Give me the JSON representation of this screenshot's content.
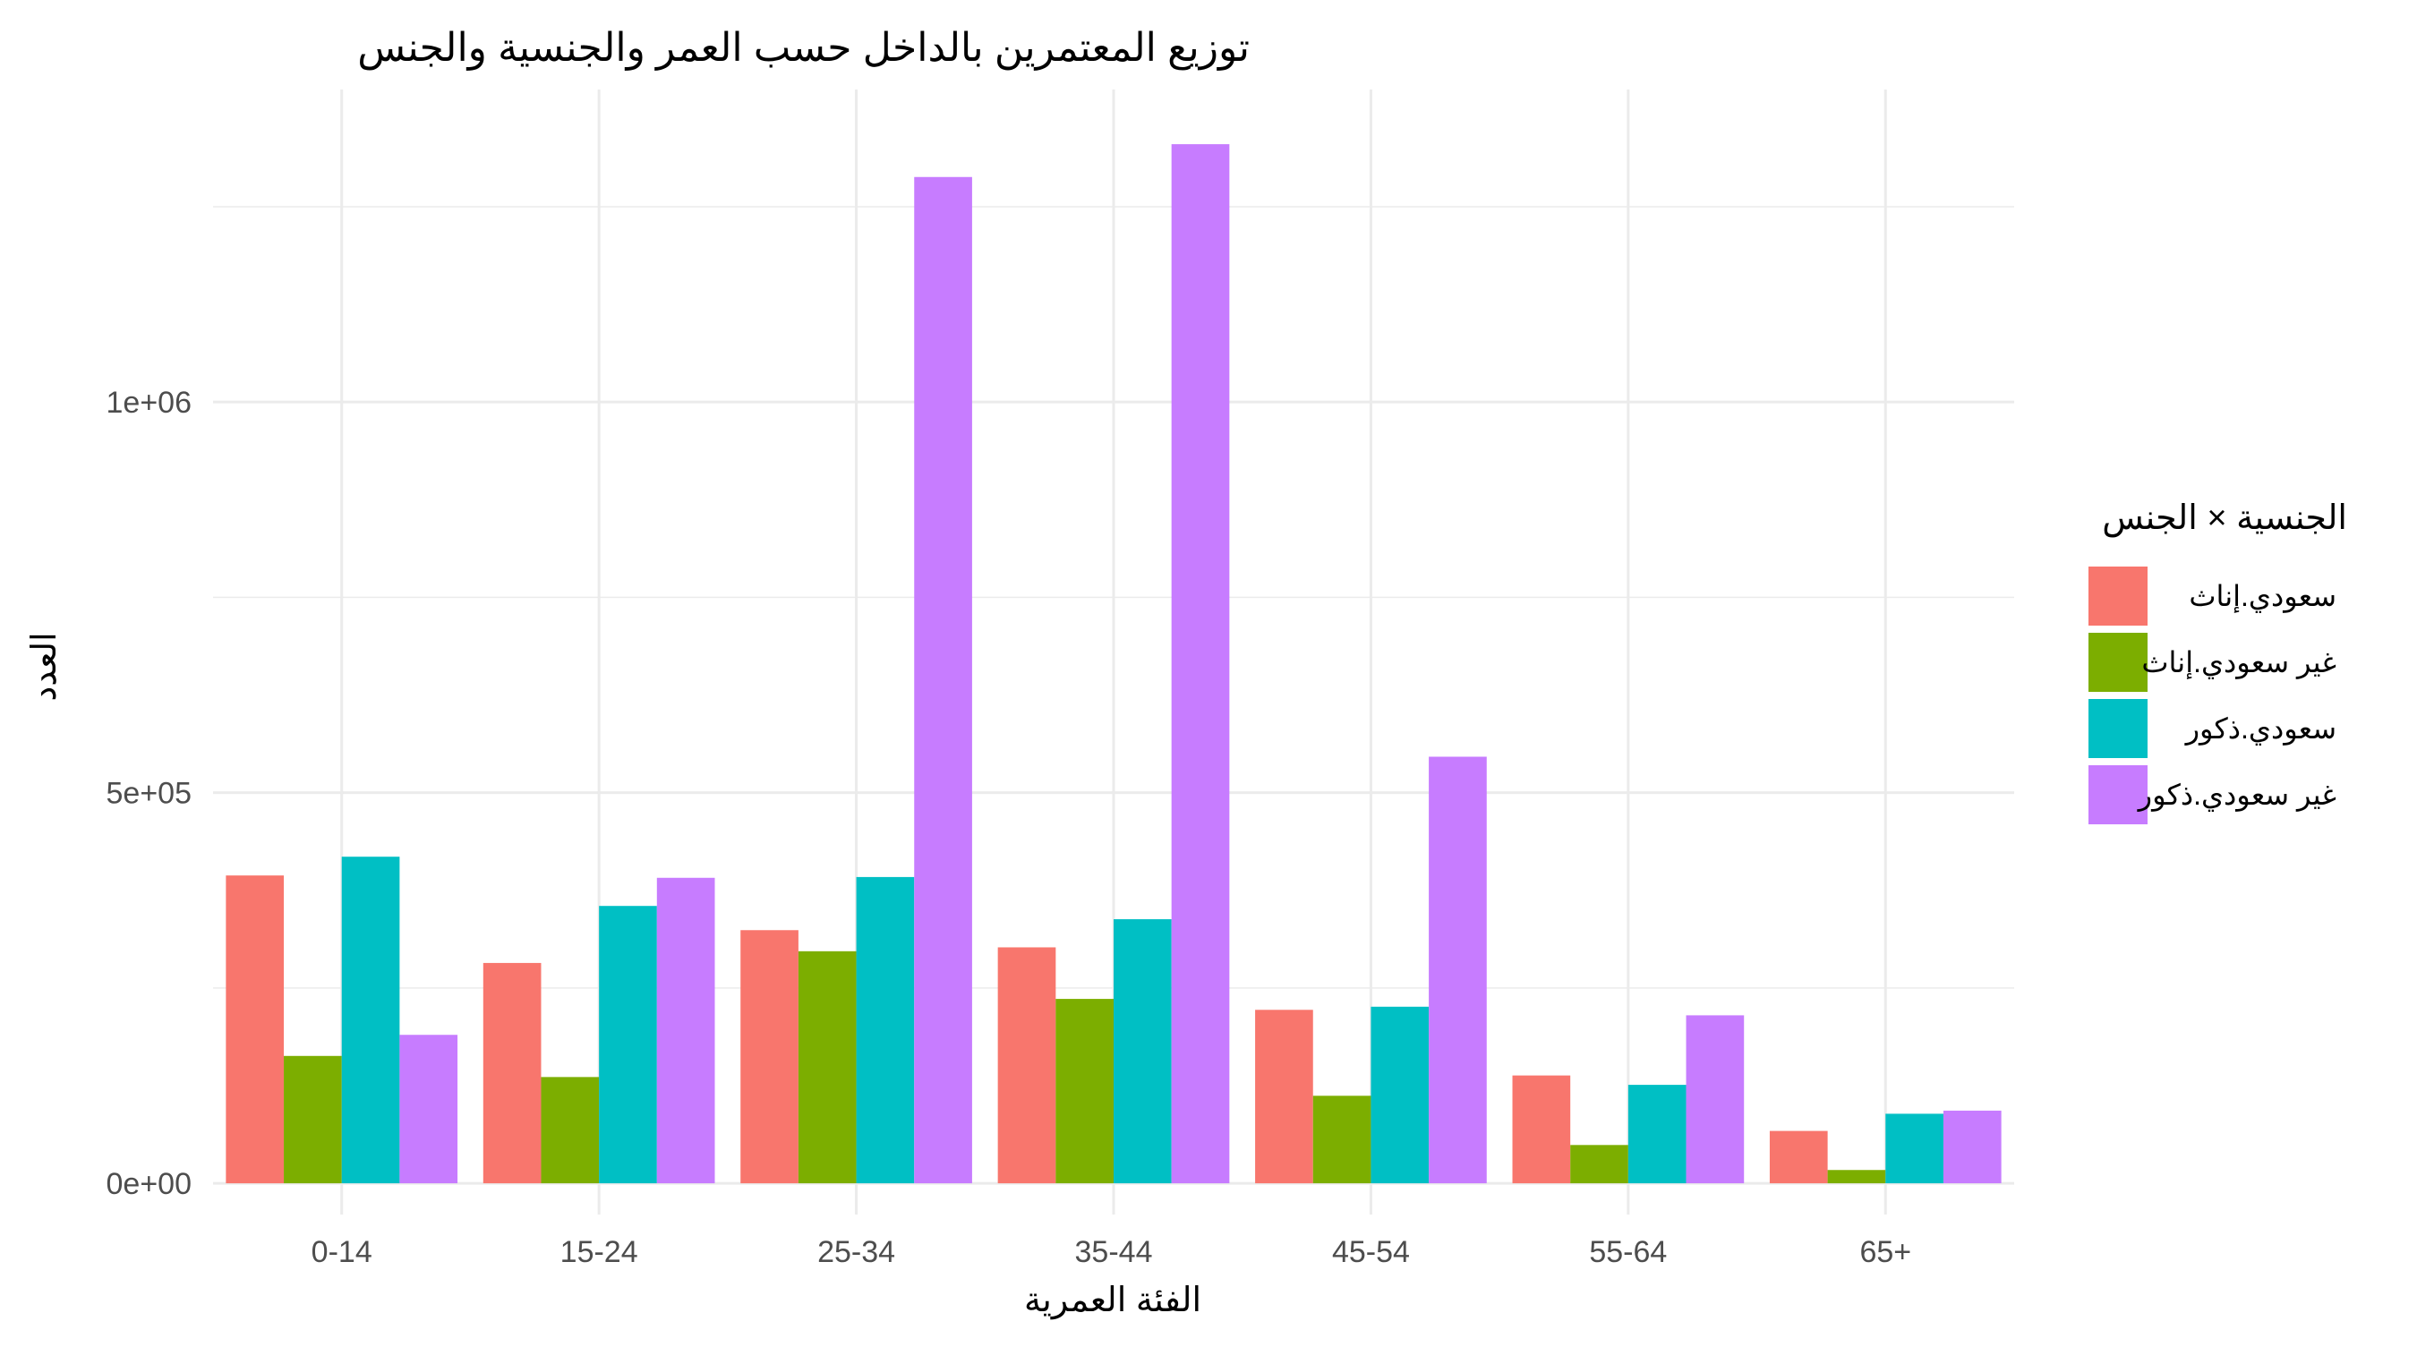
{
  "chart_data": {
    "type": "bar",
    "title": "توزيع المعتمرين بالداخل حسب العمر والجنسية والجنس",
    "xlabel": "الفئة العمرية",
    "ylabel": "العدد",
    "categories": [
      "0-14",
      "15-24",
      "25-34",
      "35-44",
      "45-54",
      "55-64",
      "65+"
    ],
    "ylim": [
      -40000,
      1400000
    ],
    "y_ticks": [
      0,
      500000,
      1000000
    ],
    "y_tick_labels": [
      "0e+00",
      "5e+05",
      "1e+06"
    ],
    "grid": true,
    "legend_position": "right",
    "legend_title": "الجنسية × الجنس",
    "series": [
      {
        "name": "سعودي.إناث",
        "color": "#F8766D",
        "values": [
          394000,
          282000,
          324000,
          302000,
          222000,
          138000,
          67000
        ]
      },
      {
        "name": "غير سعودي.إناث",
        "color": "#7CAE00",
        "values": [
          163000,
          136000,
          297000,
          236000,
          112000,
          49000,
          17000
        ]
      },
      {
        "name": "سعودي.ذكور",
        "color": "#00BFC4",
        "values": [
          418000,
          355000,
          392000,
          338000,
          226000,
          126000,
          89000
        ]
      },
      {
        "name": "غير سعودي.ذكور",
        "color": "#C77CFF",
        "values": [
          190000,
          391000,
          1288000,
          1330000,
          546000,
          215000,
          93000
        ]
      }
    ]
  }
}
